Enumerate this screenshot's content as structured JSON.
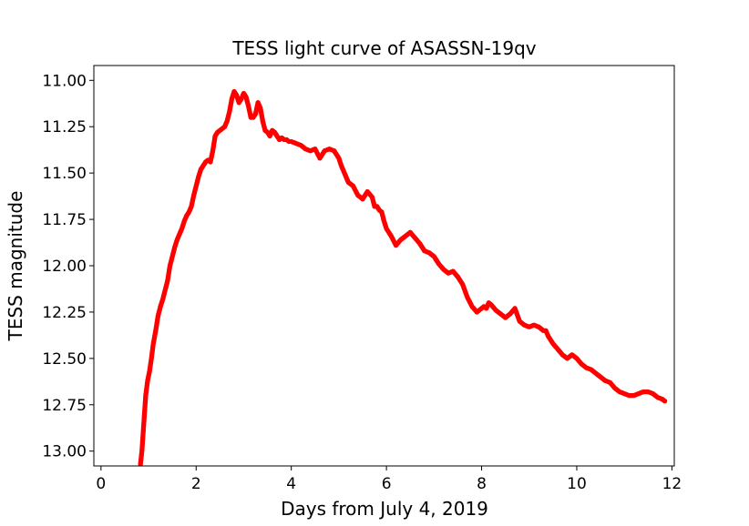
{
  "chart_data": {
    "type": "scatter",
    "title": "TESS light curve of ASASSN-19qv",
    "xlabel": "Days from July 4, 2019",
    "ylabel": "TESS magnitude",
    "xlim": [
      -0.15,
      12.05
    ],
    "ylim": [
      13.08,
      10.92
    ],
    "y_inverted": true,
    "grid": false,
    "marker_color": "#ff0000",
    "xticks": [
      0,
      2,
      4,
      6,
      8,
      10,
      12
    ],
    "xtick_labels": [
      "0",
      "2",
      "4",
      "6",
      "8",
      "10",
      "12"
    ],
    "yticks": [
      11.0,
      11.25,
      11.5,
      11.75,
      12.0,
      12.25,
      12.5,
      12.75,
      13.0
    ],
    "ytick_labels": [
      "11.00",
      "11.25",
      "11.50",
      "11.75",
      "12.00",
      "12.25",
      "12.50",
      "12.75",
      "13.00"
    ],
    "series": [
      {
        "name": "ASASSN-19qv",
        "x": [
          0.83,
          0.86,
          0.9,
          0.94,
          0.98,
          1.02,
          1.06,
          1.1,
          1.15,
          1.2,
          1.25,
          1.3,
          1.35,
          1.4,
          1.45,
          1.5,
          1.55,
          1.6,
          1.65,
          1.7,
          1.75,
          1.8,
          1.85,
          1.9,
          1.95,
          2.0,
          2.05,
          2.1,
          2.15,
          2.2,
          2.25,
          2.3,
          2.35,
          2.4,
          2.45,
          2.5,
          2.55,
          2.6,
          2.65,
          2.7,
          2.75,
          2.8,
          2.85,
          2.9,
          2.95,
          3.0,
          3.05,
          3.1,
          3.15,
          3.2,
          3.25,
          3.3,
          3.35,
          3.4,
          3.45,
          3.5,
          3.55,
          3.6,
          3.65,
          3.7,
          3.75,
          3.8,
          3.85,
          3.9,
          3.95,
          4.0,
          4.1,
          4.2,
          4.3,
          4.4,
          4.5,
          4.6,
          4.7,
          4.8,
          4.9,
          5.0,
          5.05,
          5.1,
          5.15,
          5.2,
          5.3,
          5.4,
          5.5,
          5.6,
          5.7,
          5.75,
          5.8,
          5.85,
          5.9,
          5.95,
          6.0,
          6.1,
          6.2,
          6.3,
          6.4,
          6.5,
          6.6,
          6.7,
          6.8,
          6.9,
          7.0,
          7.05,
          7.1,
          7.2,
          7.3,
          7.4,
          7.5,
          7.6,
          7.7,
          7.8,
          7.9,
          8.0,
          8.05,
          8.1,
          8.15,
          8.2,
          8.3,
          8.4,
          8.5,
          8.6,
          8.7,
          8.8,
          8.9,
          9.0,
          9.1,
          9.2,
          9.3,
          9.35,
          9.4,
          9.5,
          9.6,
          9.7,
          9.8,
          9.9,
          10.0,
          10.1,
          10.2,
          10.3,
          10.4,
          10.5,
          10.6,
          10.7,
          10.8,
          10.9,
          11.0,
          11.1,
          11.2,
          11.3,
          11.4,
          11.5,
          11.6,
          11.7,
          11.8,
          11.85
        ],
        "y": [
          13.07,
          13.0,
          12.85,
          12.7,
          12.62,
          12.57,
          12.5,
          12.42,
          12.35,
          12.27,
          12.22,
          12.18,
          12.13,
          12.08,
          12.0,
          11.95,
          11.9,
          11.86,
          11.83,
          11.8,
          11.76,
          11.73,
          11.71,
          11.68,
          11.62,
          11.57,
          11.52,
          11.48,
          11.46,
          11.44,
          11.43,
          11.44,
          11.38,
          11.3,
          11.28,
          11.27,
          11.26,
          11.25,
          11.22,
          11.17,
          11.1,
          11.06,
          11.08,
          11.12,
          11.1,
          11.07,
          11.09,
          11.14,
          11.2,
          11.2,
          11.18,
          11.12,
          11.15,
          11.22,
          11.27,
          11.28,
          11.3,
          11.27,
          11.28,
          11.3,
          11.32,
          11.31,
          11.32,
          11.32,
          11.33,
          11.33,
          11.34,
          11.35,
          11.37,
          11.38,
          11.37,
          11.42,
          11.38,
          11.37,
          11.38,
          11.42,
          11.46,
          11.49,
          11.52,
          11.55,
          11.57,
          11.62,
          11.64,
          11.6,
          11.63,
          11.68,
          11.68,
          11.7,
          11.71,
          11.76,
          11.8,
          11.84,
          11.89,
          11.86,
          11.84,
          11.82,
          11.85,
          11.88,
          11.92,
          11.93,
          11.95,
          11.97,
          11.99,
          12.02,
          12.04,
          12.03,
          12.06,
          12.1,
          12.17,
          12.22,
          12.25,
          12.23,
          12.22,
          12.23,
          12.2,
          12.21,
          12.24,
          12.26,
          12.28,
          12.26,
          12.23,
          12.3,
          12.32,
          12.33,
          12.32,
          12.33,
          12.35,
          12.35,
          12.38,
          12.42,
          12.45,
          12.48,
          12.5,
          12.48,
          12.5,
          12.53,
          12.55,
          12.56,
          12.58,
          12.6,
          12.62,
          12.63,
          12.66,
          12.68,
          12.69,
          12.7,
          12.7,
          12.69,
          12.68,
          12.68,
          12.69,
          12.71,
          12.72,
          12.73
        ]
      }
    ]
  }
}
